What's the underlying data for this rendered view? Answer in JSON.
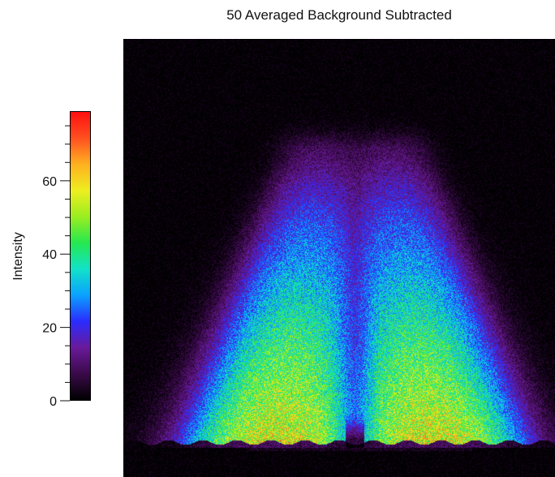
{
  "title": "50 Averaged Background Subtracted",
  "chart_data": {
    "type": "heatmap",
    "title": "50 Averaged Background Subtracted",
    "colorbar": {
      "label": "Intensity",
      "range": [
        0,
        79
      ],
      "major_ticks": [
        0,
        20,
        40,
        60
      ],
      "minor_tick_step": 5,
      "tick_labels": [
        "0",
        "20",
        "40",
        "60"
      ],
      "colormap": "rainbow",
      "colormap_stops": [
        "#000000",
        "#3a0a4a",
        "#6a1a9a",
        "#2a2cff",
        "#0aa2ff",
        "#12e2c8",
        "#25e850",
        "#9aee20",
        "#eeee20",
        "#ffb020",
        "#ff5020",
        "#ff1010"
      ]
    },
    "image": {
      "background_color": "#050108",
      "description_values": {
        "peak_intensity": 65,
        "lobes": 2
      }
    }
  }
}
